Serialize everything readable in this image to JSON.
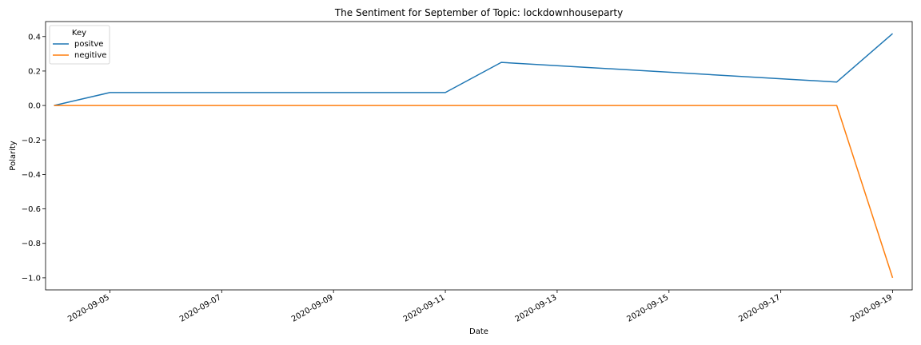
{
  "chart_data": {
    "type": "line",
    "title": "The Sentiment for September of Topic: lockdownhouseparty",
    "xlabel": "Date",
    "ylabel": "Polarity",
    "x": [
      "2020-09-04",
      "2020-09-05",
      "2020-09-11",
      "2020-09-12",
      "2020-09-18",
      "2020-09-19"
    ],
    "series": [
      {
        "name": "positve",
        "color": "#1f77b4",
        "values": [
          0.0,
          0.075,
          0.075,
          0.25,
          0.136,
          0.417
        ]
      },
      {
        "name": "negitive",
        "color": "#ff7f0e",
        "values": [
          0.0,
          0.0,
          0.0,
          0.0,
          0.0,
          -1.0
        ]
      }
    ],
    "x_ticks": [
      "2020-09-05",
      "2020-09-07",
      "2020-09-09",
      "2020-09-11",
      "2020-09-13",
      "2020-09-15",
      "2020-09-17",
      "2020-09-19"
    ],
    "y_ticks": [
      "0.4",
      "0.2",
      "0.0",
      "−0.2",
      "−0.4",
      "−0.6",
      "−0.8",
      "−1.0"
    ],
    "y_tick_values": [
      0.4,
      0.2,
      0.0,
      -0.2,
      -0.4,
      -0.6,
      -0.8,
      -1.0
    ],
    "xlim": [
      "2020-09-03",
      "2020-09-19"
    ],
    "ylim": [
      -1.07,
      0.487
    ],
    "legend": {
      "title": "Key",
      "position": "top-left"
    },
    "grid": false
  }
}
